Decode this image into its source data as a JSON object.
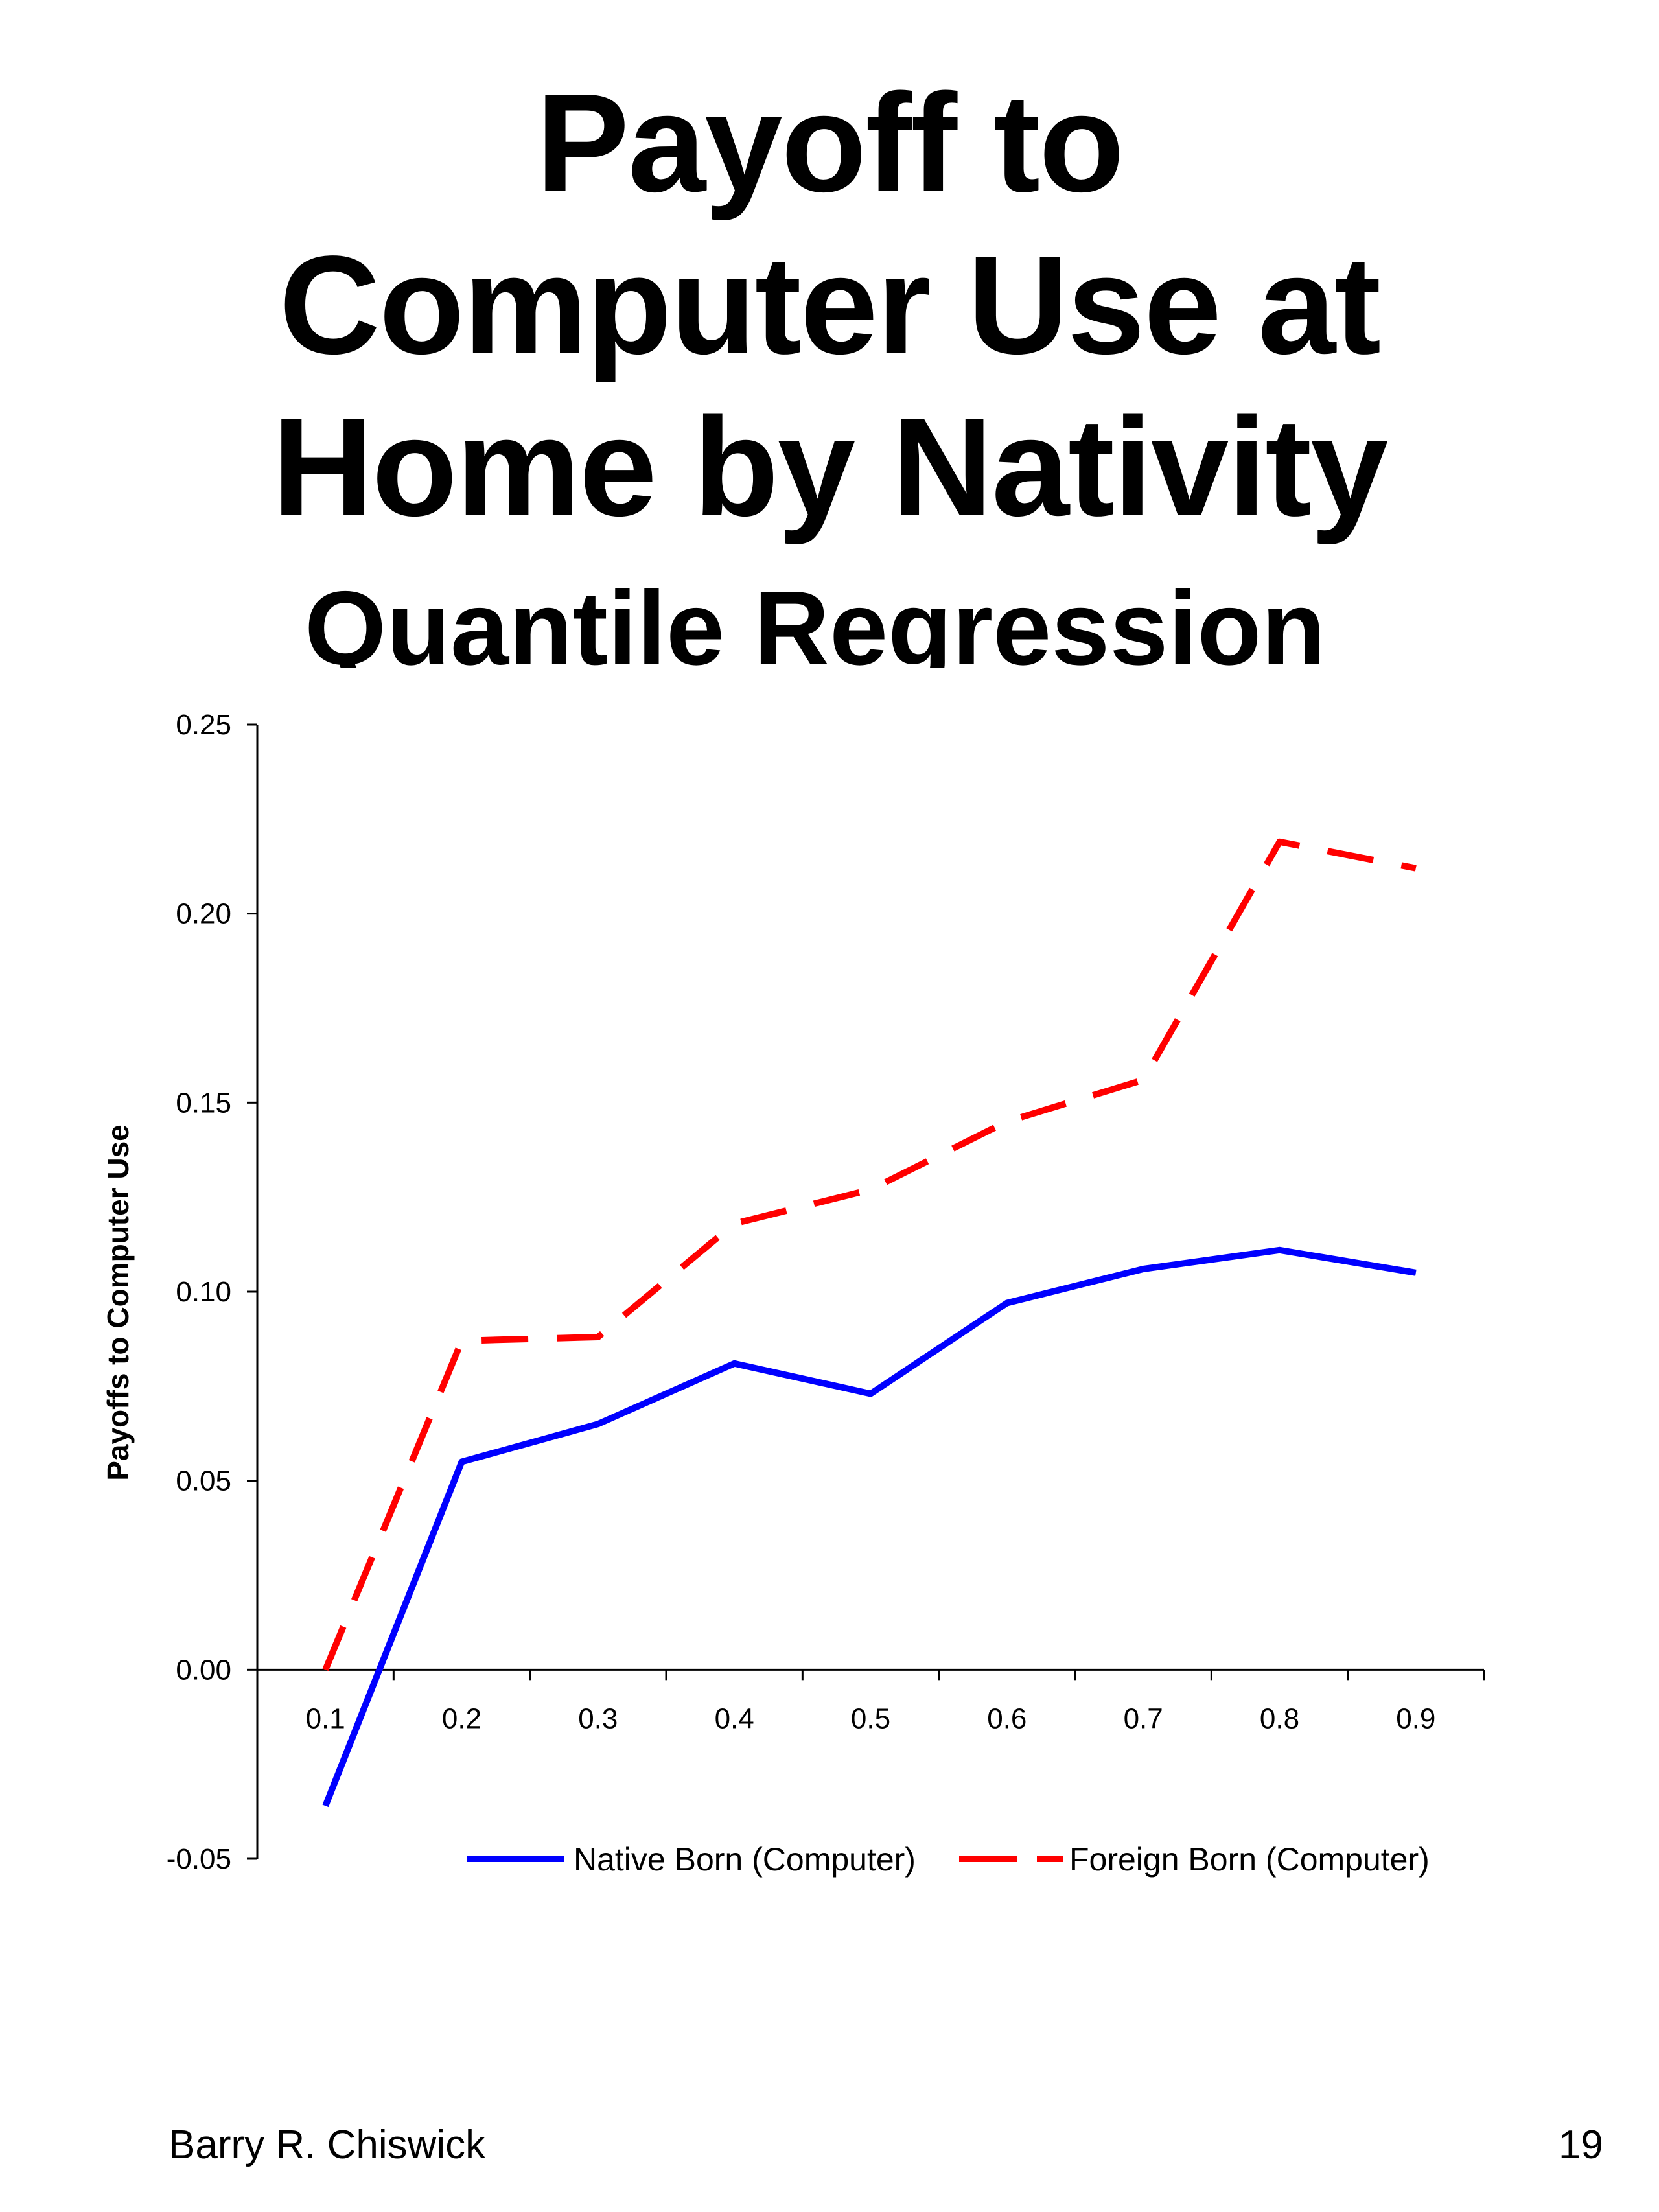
{
  "slide": {
    "title_lines": [
      "Payoff to",
      "Computer Use at",
      "Home by Nativity"
    ],
    "subtitle": "Quantile Regression",
    "footer_author": "Barry R. Chiswick",
    "page_number": "19"
  },
  "chart_data": {
    "type": "line",
    "title": "",
    "xlabel": "",
    "ylabel": "Payoffs to Computer Use",
    "categories": [
      "0.1",
      "0.2",
      "0.3",
      "0.4",
      "0.5",
      "0.6",
      "0.7",
      "0.8",
      "0.9"
    ],
    "y_ticks": [
      "-0.05",
      "0.00",
      "0.05",
      "0.10",
      "0.15",
      "0.20",
      "0.25"
    ],
    "ylim": [
      -0.05,
      0.25
    ],
    "grid": false,
    "legend_position": "bottom",
    "series": [
      {
        "name": "Native Born (Computer)",
        "color": "#0000ff",
        "style": "solid",
        "values": [
          -0.036,
          0.055,
          0.065,
          0.081,
          0.073,
          0.097,
          0.106,
          0.111,
          0.105
        ]
      },
      {
        "name": "Foreign Born (Computer)",
        "color": "#ff0000",
        "style": "dashed",
        "values": [
          0.0,
          0.087,
          0.088,
          0.118,
          0.127,
          0.145,
          0.156,
          0.219,
          0.212
        ]
      }
    ]
  }
}
